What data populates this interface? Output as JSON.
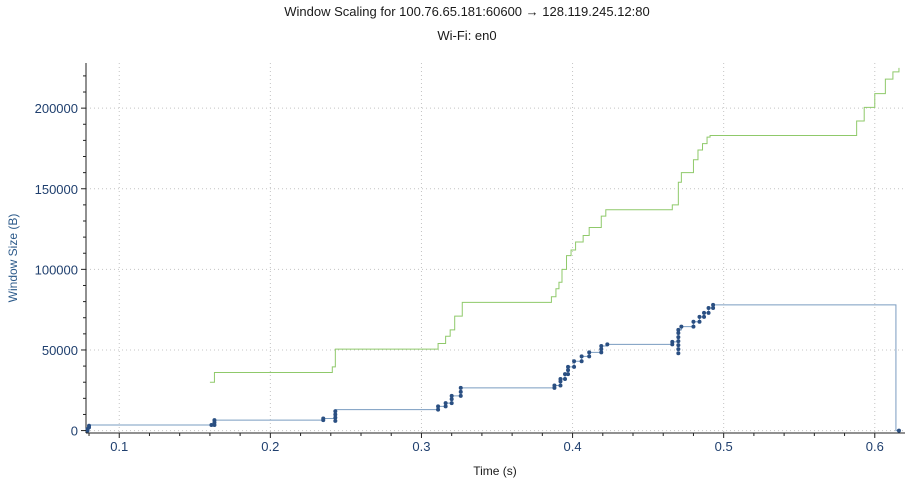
{
  "chart_data": {
    "type": "line",
    "title": "Window Scaling for 100.76.65.181:60600 → 128.119.245.12:80",
    "subtitle": "Wi-Fi: en0",
    "xlabel": "Time (s)",
    "ylabel": "Window Size (B)",
    "xlim": [
      0.078,
      0.62
    ],
    "ylim": [
      -1500,
      228000
    ],
    "x_ticks": [
      0.1,
      0.2,
      0.3,
      0.4,
      0.5,
      0.6
    ],
    "x_tick_labels": [
      "0.1",
      "0.2",
      "0.3",
      "0.4",
      "0.5",
      "0.6"
    ],
    "y_ticks": [
      0,
      50000,
      100000,
      150000,
      200000
    ],
    "y_tick_labels": [
      "0",
      "50000",
      "100000",
      "150000",
      "200000"
    ],
    "grid": true,
    "colors": {
      "receive_window": "#8fc96a",
      "bytes_out": "#7a9cc0",
      "bytes_out_marker": "#2a4f82",
      "axis_text": "#1f3f6e"
    },
    "series": [
      {
        "style": "step",
        "points": [
          [
            0.16,
            30000
          ],
          [
            0.163,
            30000
          ],
          [
            0.163,
            36000
          ],
          [
            0.241,
            36000
          ],
          [
            0.241,
            39500
          ],
          [
            0.243,
            39500
          ],
          [
            0.243,
            50500
          ],
          [
            0.311,
            50500
          ],
          [
            0.311,
            54000
          ],
          [
            0.316,
            54000
          ],
          [
            0.316,
            58500
          ],
          [
            0.319,
            58500
          ],
          [
            0.319,
            62500
          ],
          [
            0.322,
            62500
          ],
          [
            0.322,
            71000
          ],
          [
            0.327,
            71000
          ],
          [
            0.327,
            79500
          ],
          [
            0.386,
            79500
          ],
          [
            0.386,
            83000
          ],
          [
            0.389,
            83000
          ],
          [
            0.389,
            88000
          ],
          [
            0.391,
            88000
          ],
          [
            0.391,
            92000
          ],
          [
            0.393,
            92000
          ],
          [
            0.393,
            100000
          ],
          [
            0.396,
            100000
          ],
          [
            0.396,
            108500
          ],
          [
            0.399,
            108500
          ],
          [
            0.399,
            112000
          ],
          [
            0.402,
            112000
          ],
          [
            0.402,
            117000
          ],
          [
            0.407,
            117000
          ],
          [
            0.407,
            121000
          ],
          [
            0.411,
            121000
          ],
          [
            0.411,
            126000
          ],
          [
            0.419,
            126000
          ],
          [
            0.419,
            133000
          ],
          [
            0.422,
            133000
          ],
          [
            0.422,
            137000
          ],
          [
            0.466,
            137000
          ],
          [
            0.466,
            140000
          ],
          [
            0.47,
            140000
          ],
          [
            0.47,
            154000
          ],
          [
            0.472,
            154000
          ],
          [
            0.472,
            160000
          ],
          [
            0.48,
            160000
          ],
          [
            0.48,
            168000
          ],
          [
            0.483,
            168000
          ],
          [
            0.483,
            174000
          ],
          [
            0.486,
            174000
          ],
          [
            0.486,
            178000
          ],
          [
            0.489,
            178000
          ],
          [
            0.489,
            182000
          ],
          [
            0.491,
            182000
          ],
          [
            0.491,
            183000
          ],
          [
            0.588,
            183000
          ],
          [
            0.588,
            192000
          ],
          [
            0.593,
            192000
          ],
          [
            0.593,
            200500
          ],
          [
            0.6,
            200500
          ],
          [
            0.6,
            209000
          ],
          [
            0.607,
            209000
          ],
          [
            0.607,
            218000
          ],
          [
            0.612,
            218000
          ],
          [
            0.612,
            222500
          ],
          [
            0.616,
            222500
          ],
          [
            0.616,
            225000
          ]
        ]
      },
      {
        "style": "step",
        "points": [
          [
            0.079,
            0
          ],
          [
            0.079,
            1500
          ],
          [
            0.08,
            1500
          ],
          [
            0.08,
            3500
          ],
          [
            0.161,
            3500
          ],
          [
            0.161,
            4000
          ],
          [
            0.163,
            4000
          ],
          [
            0.163,
            6500
          ],
          [
            0.235,
            6500
          ],
          [
            0.235,
            7500
          ],
          [
            0.243,
            7500
          ],
          [
            0.243,
            13000
          ],
          [
            0.311,
            13000
          ],
          [
            0.311,
            15000
          ],
          [
            0.316,
            15000
          ],
          [
            0.316,
            17000
          ],
          [
            0.32,
            17000
          ],
          [
            0.32,
            21500
          ],
          [
            0.326,
            21500
          ],
          [
            0.326,
            26500
          ],
          [
            0.388,
            26500
          ],
          [
            0.388,
            28000
          ],
          [
            0.392,
            28000
          ],
          [
            0.392,
            32000
          ],
          [
            0.395,
            32000
          ],
          [
            0.395,
            35000
          ],
          [
            0.397,
            35000
          ],
          [
            0.397,
            39500
          ],
          [
            0.401,
            39500
          ],
          [
            0.401,
            43000
          ],
          [
            0.406,
            43000
          ],
          [
            0.406,
            46000
          ],
          [
            0.411,
            46000
          ],
          [
            0.411,
            48500
          ],
          [
            0.419,
            48500
          ],
          [
            0.419,
            52500
          ],
          [
            0.423,
            52500
          ],
          [
            0.423,
            53500
          ],
          [
            0.466,
            53500
          ],
          [
            0.466,
            55000
          ],
          [
            0.47,
            55000
          ],
          [
            0.47,
            62500
          ],
          [
            0.472,
            62500
          ],
          [
            0.472,
            64500
          ],
          [
            0.48,
            64500
          ],
          [
            0.48,
            67500
          ],
          [
            0.484,
            67500
          ],
          [
            0.484,
            70500
          ],
          [
            0.487,
            70500
          ],
          [
            0.487,
            73000
          ],
          [
            0.49,
            73000
          ],
          [
            0.49,
            76000
          ],
          [
            0.493,
            76000
          ],
          [
            0.493,
            78000
          ],
          [
            0.614,
            78000
          ],
          [
            0.614,
            0
          ],
          [
            0.616,
            0
          ]
        ],
        "markers": [
          [
            0.079,
            0
          ],
          [
            0.079,
            800
          ],
          [
            0.08,
            2000
          ],
          [
            0.08,
            3000
          ],
          [
            0.161,
            3500
          ],
          [
            0.163,
            3500
          ],
          [
            0.163,
            5000
          ],
          [
            0.163,
            6500
          ],
          [
            0.235,
            6500
          ],
          [
            0.235,
            7500
          ],
          [
            0.243,
            6000
          ],
          [
            0.243,
            8000
          ],
          [
            0.243,
            10000
          ],
          [
            0.243,
            12000
          ],
          [
            0.311,
            13000
          ],
          [
            0.311,
            15000
          ],
          [
            0.316,
            15000
          ],
          [
            0.316,
            17000
          ],
          [
            0.32,
            17000
          ],
          [
            0.32,
            19500
          ],
          [
            0.32,
            21500
          ],
          [
            0.326,
            21500
          ],
          [
            0.326,
            24000
          ],
          [
            0.326,
            26500
          ],
          [
            0.388,
            26500
          ],
          [
            0.388,
            28000
          ],
          [
            0.392,
            28000
          ],
          [
            0.392,
            30500
          ],
          [
            0.392,
            32000
          ],
          [
            0.395,
            32000
          ],
          [
            0.395,
            35000
          ],
          [
            0.397,
            35000
          ],
          [
            0.397,
            37500
          ],
          [
            0.397,
            39500
          ],
          [
            0.401,
            39500
          ],
          [
            0.401,
            43000
          ],
          [
            0.406,
            43000
          ],
          [
            0.406,
            46000
          ],
          [
            0.411,
            46000
          ],
          [
            0.411,
            48500
          ],
          [
            0.419,
            48500
          ],
          [
            0.419,
            50500
          ],
          [
            0.419,
            52500
          ],
          [
            0.423,
            53500
          ],
          [
            0.466,
            53500
          ],
          [
            0.466,
            55000
          ],
          [
            0.47,
            48000
          ],
          [
            0.47,
            50500
          ],
          [
            0.47,
            53000
          ],
          [
            0.47,
            55500
          ],
          [
            0.47,
            58000
          ],
          [
            0.47,
            60500
          ],
          [
            0.47,
            62500
          ],
          [
            0.472,
            64500
          ],
          [
            0.48,
            64500
          ],
          [
            0.48,
            67500
          ],
          [
            0.484,
            67500
          ],
          [
            0.484,
            70500
          ],
          [
            0.487,
            70500
          ],
          [
            0.487,
            73000
          ],
          [
            0.49,
            73000
          ],
          [
            0.49,
            76000
          ],
          [
            0.493,
            76000
          ],
          [
            0.493,
            78000
          ],
          [
            0.616,
            0
          ]
        ]
      }
    ]
  }
}
